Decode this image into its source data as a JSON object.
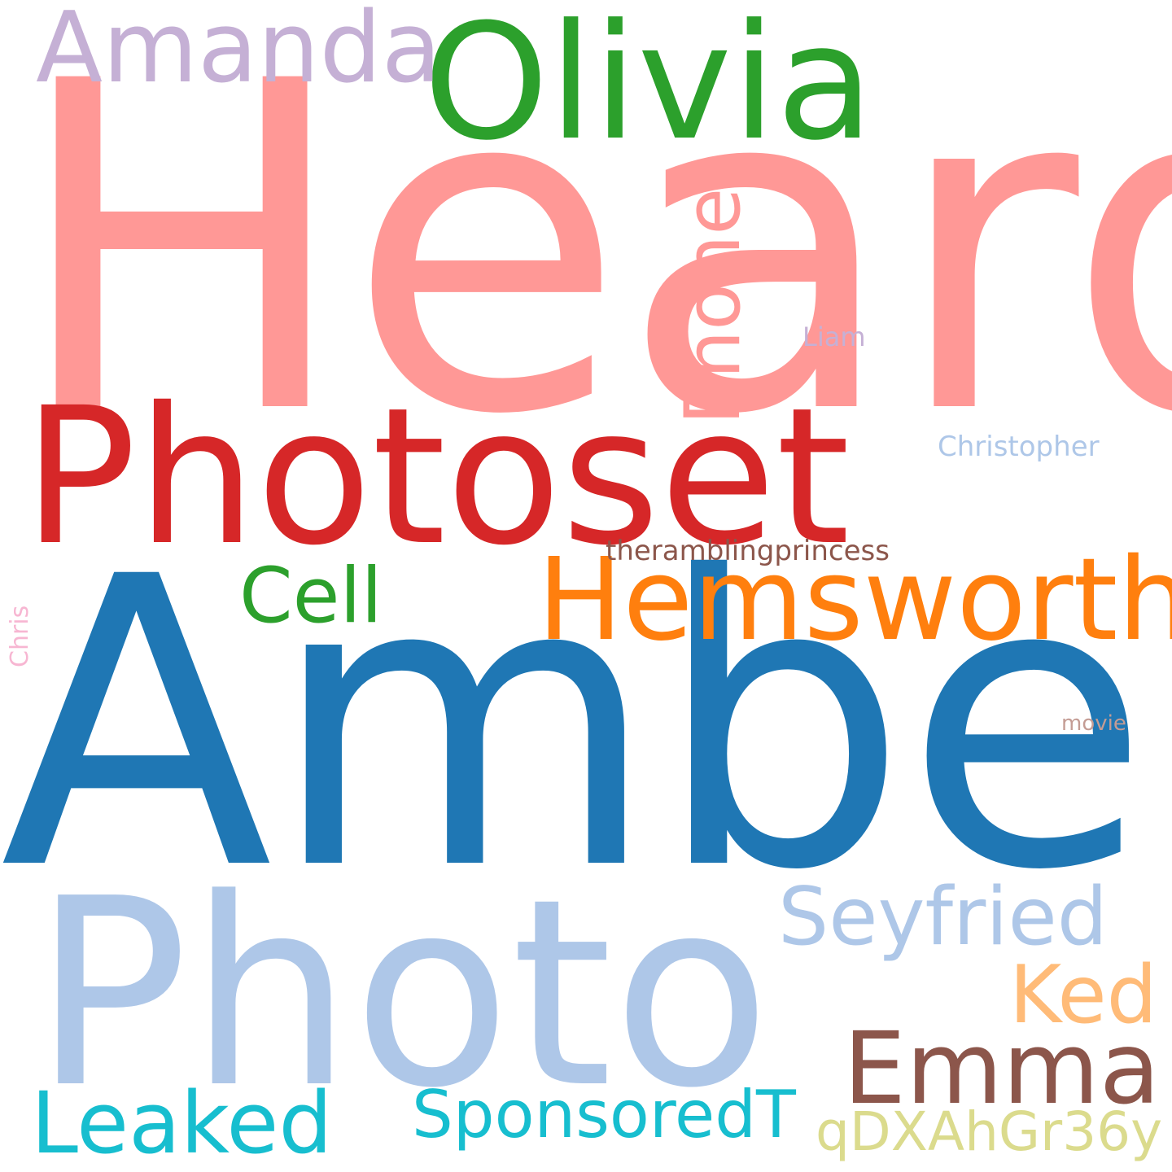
{
  "words": [
    {
      "id": "heard",
      "text": "Heard",
      "color": "#ff9896"
    },
    {
      "id": "amber",
      "text": "Amber",
      "color": "#1f77b4"
    },
    {
      "id": "photo",
      "text": "Photo",
      "color": "#aec7e8"
    },
    {
      "id": "photoset",
      "text": "Photoset",
      "color": "#d62728"
    },
    {
      "id": "olivia",
      "text": "Olivia",
      "color": "#2ca02c"
    },
    {
      "id": "amanda",
      "text": "Amanda",
      "color": "#c5b0d5"
    },
    {
      "id": "hemsworth",
      "text": "Hemsworth",
      "color": "#ff7f0e"
    },
    {
      "id": "seyfried",
      "text": "Seyfried",
      "color": "#aec7e8"
    },
    {
      "id": "phone",
      "text": "Phone",
      "color": "#ff9896"
    },
    {
      "id": "cell",
      "text": "Cell",
      "color": "#2ca02c"
    },
    {
      "id": "emma",
      "text": "Emma",
      "color": "#8c564b"
    },
    {
      "id": "ked",
      "text": "Ked",
      "color": "#ffbb78"
    },
    {
      "id": "leaked",
      "text": "Leaked",
      "color": "#17becf"
    },
    {
      "id": "sponsoredt",
      "text": "SponsoredT",
      "color": "#17becf"
    },
    {
      "id": "qdxahgr36y",
      "text": "qDXAhGr36y",
      "color": "#dbdb8d"
    },
    {
      "id": "therambling",
      "text": "theramblingprincess",
      "color": "#8c564b"
    },
    {
      "id": "christopher",
      "text": "Christopher",
      "color": "#aec7e8"
    },
    {
      "id": "liam",
      "text": "Liam",
      "color": "#c5b0d5"
    },
    {
      "id": "movie",
      "text": "movie",
      "color": "#c49c94"
    },
    {
      "id": "chris",
      "text": "Chris",
      "color": "#f7b6d2"
    }
  ]
}
